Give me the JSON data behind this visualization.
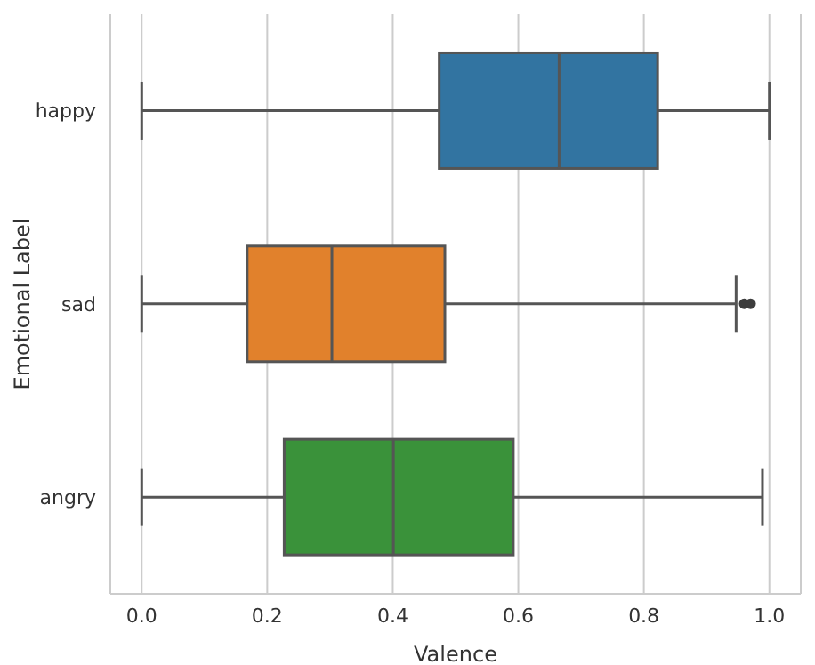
{
  "chart_data": {
    "type": "box",
    "orientation": "horizontal",
    "xlabel": "Valence",
    "ylabel": "Emotional Label",
    "categories": [
      "happy",
      "sad",
      "angry"
    ],
    "colors": [
      "#3274a1",
      "#e1812c",
      "#3a923a"
    ],
    "boxes": [
      {
        "low": 0,
        "q1": 0.474,
        "median": 0.665,
        "q3": 0.822,
        "high": 1.0
      },
      {
        "low": 0,
        "q1": 0.168,
        "median": 0.303,
        "q3": 0.483,
        "high": 0.947,
        "outliers": [
          0.96,
          0.97
        ]
      },
      {
        "low": 0,
        "q1": 0.227,
        "median": 0.401,
        "q3": 0.592,
        "high": 0.989
      }
    ],
    "xlim": [
      -0.05,
      1.05
    ],
    "xticks": [
      {
        "value": 0,
        "label": "0.0"
      },
      {
        "value": 0.2,
        "label": "0.2"
      },
      {
        "value": 0.4,
        "label": "0.4"
      },
      {
        "value": 0.6,
        "label": "0.6"
      },
      {
        "value": 0.8,
        "label": "0.8"
      },
      {
        "value": 1,
        "label": "1.0"
      }
    ],
    "grid": "x"
  }
}
